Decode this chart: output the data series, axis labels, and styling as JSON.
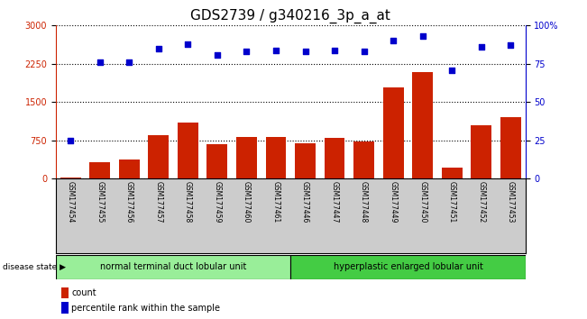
{
  "title": "GDS2739 / g340216_3p_a_at",
  "samples": [
    "GSM177454",
    "GSM177455",
    "GSM177456",
    "GSM177457",
    "GSM177458",
    "GSM177459",
    "GSM177460",
    "GSM177461",
    "GSM177446",
    "GSM177447",
    "GSM177448",
    "GSM177449",
    "GSM177450",
    "GSM177451",
    "GSM177452",
    "GSM177453"
  ],
  "counts": [
    20,
    320,
    370,
    850,
    1100,
    680,
    820,
    820,
    690,
    800,
    730,
    1780,
    2080,
    220,
    1050,
    1200
  ],
  "percentiles": [
    25,
    76,
    76,
    85,
    88,
    81,
    83,
    84,
    83,
    84,
    83,
    90,
    93,
    71,
    86,
    87
  ],
  "group1_label": "normal terminal duct lobular unit",
  "group2_label": "hyperplastic enlarged lobular unit",
  "group1_count": 8,
  "group2_count": 8,
  "disease_state_label": "disease state",
  "legend_count_label": "count",
  "legend_pct_label": "percentile rank within the sample",
  "ylim_left": [
    0,
    3000
  ],
  "ylim_right": [
    0,
    100
  ],
  "yticks_left": [
    0,
    750,
    1500,
    2250,
    3000
  ],
  "yticks_right": [
    0,
    25,
    50,
    75,
    100
  ],
  "bar_color": "#CC2200",
  "dot_color": "#0000CC",
  "group1_color": "#99EE99",
  "group2_color": "#44CC44",
  "bg_color": "#CCCCCC",
  "title_fontsize": 11,
  "tick_fontsize": 7,
  "label_fontsize": 7
}
